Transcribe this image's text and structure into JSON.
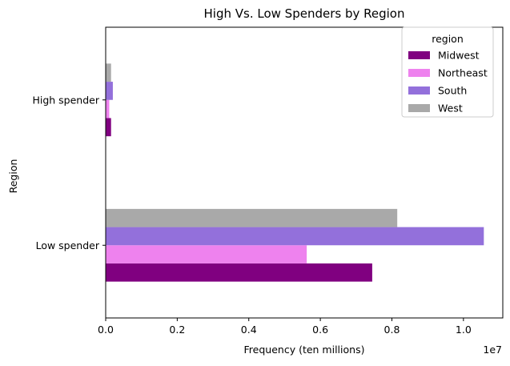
{
  "chart_data": {
    "type": "bar",
    "orientation": "horizontal",
    "title": "High Vs. Low Spenders by Region",
    "xlabel": "Frequency (ten millions)",
    "ylabel": "Region",
    "x_scale_label": "1e7",
    "xlim": [
      0,
      1.11
    ],
    "x_ticks": [
      0.0,
      0.2,
      0.4,
      0.6,
      0.8,
      1.0
    ],
    "x_tick_labels": [
      "0.0",
      "0.2",
      "0.4",
      "0.6",
      "0.8",
      "1.0"
    ],
    "categories": [
      "High spender",
      "Low spender"
    ],
    "series": [
      {
        "name": "Midwest",
        "color": "#800080",
        "values": [
          0.015,
          0.745
        ]
      },
      {
        "name": "Northeast",
        "color": "#EE82EE",
        "values": [
          0.01,
          0.562
        ]
      },
      {
        "name": "South",
        "color": "#9370DB",
        "values": [
          0.02,
          1.057
        ]
      },
      {
        "name": "West",
        "color": "#A9A9A9",
        "values": [
          0.015,
          0.815
        ]
      }
    ],
    "legend": {
      "title": "region",
      "placement": "top-right"
    },
    "grid": false
  }
}
